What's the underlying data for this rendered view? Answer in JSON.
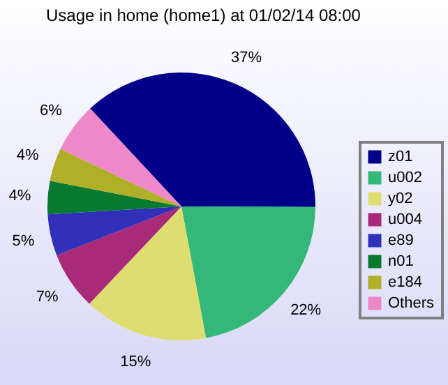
{
  "chart_data": {
    "type": "pie",
    "title": "Usage in home (home1) at 01/02/14 08:00",
    "categories": [
      "z01",
      "u002",
      "y02",
      "u004",
      "e89",
      "n01",
      "e184",
      "Others"
    ],
    "values": [
      37,
      22,
      15,
      7,
      5,
      4,
      4,
      6
    ],
    "value_labels": [
      "37%",
      "22%",
      "15%",
      "7%",
      "5%",
      "4%",
      "4%",
      "6%"
    ],
    "colors": [
      "#000088",
      "#34b87a",
      "#dede70",
      "#a82a78",
      "#3030b8",
      "#087a30",
      "#b0b028",
      "#ee88c8"
    ],
    "legend": "right"
  }
}
